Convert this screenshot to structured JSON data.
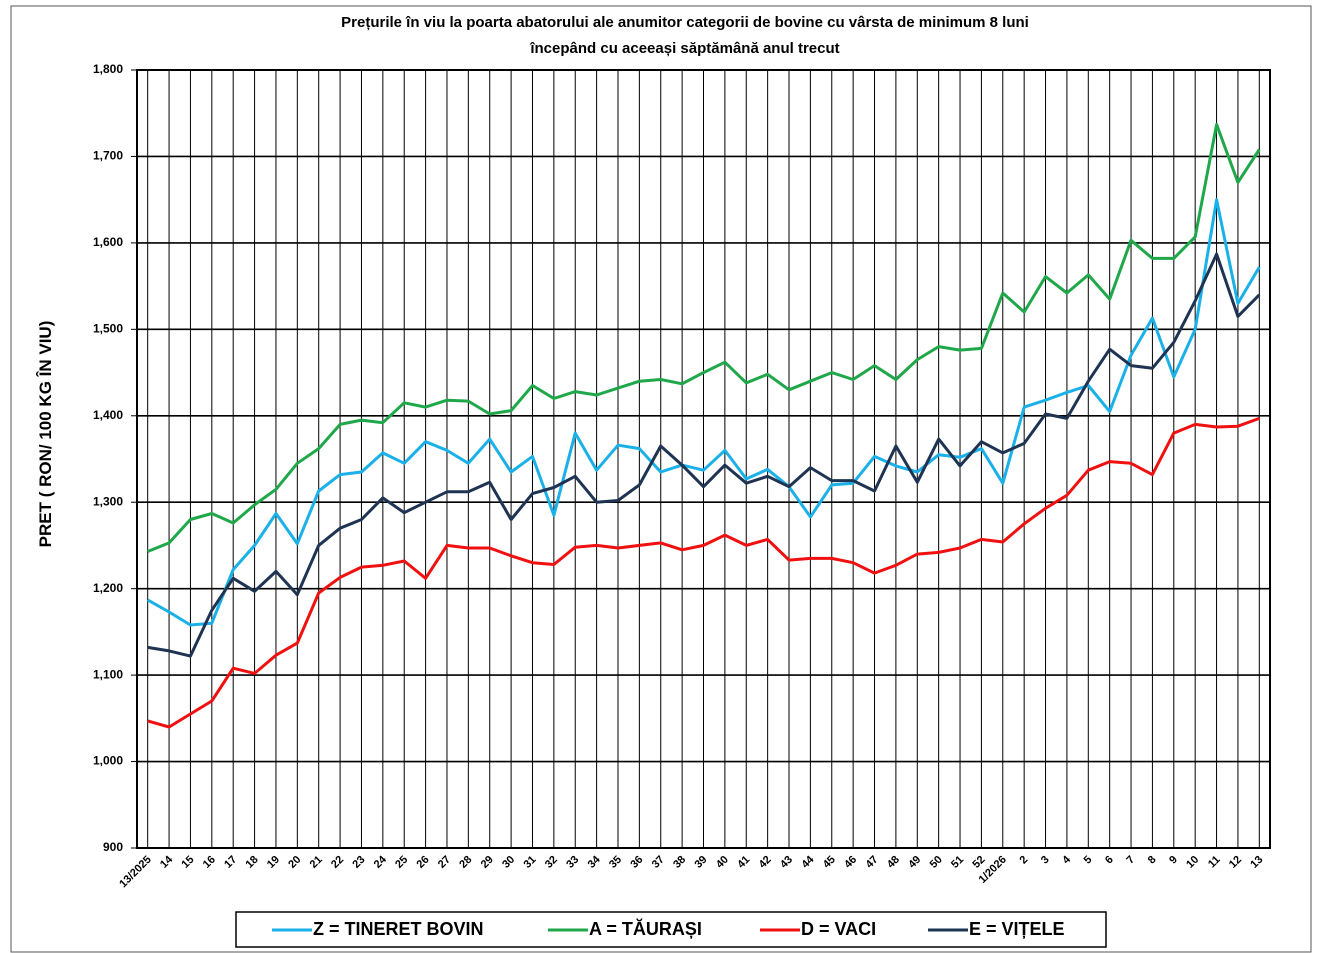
{
  "chart_data": {
    "type": "line",
    "title": "Prețurile în viu  la poarta abatorului ale anumitor categorii de  bovine  cu vârsta de minimum 8 luni",
    "subtitle": "începând  cu  aceeași săptămână anul trecut",
    "y_label": "PRET  ( RON/ 100 KG ÎN VIU)",
    "categories": [
      "13/2025",
      "14",
      "15",
      "16",
      "17",
      "18",
      "19",
      "20",
      "21",
      "22",
      "23",
      "24",
      "25",
      "26",
      "27",
      "28",
      "29",
      "30",
      "31",
      "32",
      "33",
      "34",
      "35",
      "36",
      "37",
      "38",
      "39",
      "40",
      "41",
      "42",
      "43",
      "44",
      "45",
      "46",
      "47",
      "48",
      "49",
      "50",
      "51",
      "52",
      "1/2026",
      "2",
      "3",
      "4",
      "5",
      "6",
      "7",
      "8",
      "9",
      "10",
      "11",
      "12",
      "13"
    ],
    "ylim": [
      900,
      1800
    ],
    "yticks": [
      {
        "value": 900,
        "label": "900"
      },
      {
        "value": 1000,
        "label": "1,000"
      },
      {
        "value": 1100,
        "label": "1,100"
      },
      {
        "value": 1200,
        "label": "1,200"
      },
      {
        "value": 1300,
        "label": "1,300"
      },
      {
        "value": 1400,
        "label": "1,400"
      },
      {
        "value": 1500,
        "label": "1,500"
      },
      {
        "value": 1600,
        "label": "1,600"
      },
      {
        "value": 1700,
        "label": "1,700"
      },
      {
        "value": 1800,
        "label": "1,800"
      }
    ],
    "grid": true,
    "legend": "bottom",
    "series": [
      {
        "name": "Z  = TINERET BOVIN",
        "color": "#1ab0e8",
        "values": [
          1187,
          1173,
          1158,
          1160,
          1222,
          1250,
          1287,
          1252,
          1313,
          1332,
          1335,
          1357,
          1345,
          1370,
          1360,
          1345,
          1373,
          1335,
          1353,
          1285,
          1380,
          1337,
          1366,
          1362,
          1335,
          1343,
          1337,
          1360,
          1327,
          1338,
          1318,
          1283,
          1320,
          1322,
          1353,
          1342,
          1335,
          1355,
          1352,
          1362,
          1322,
          1410,
          1418,
          1427,
          1435,
          1405,
          1470,
          1513,
          1445,
          1500,
          1650,
          1530,
          1572
        ]
      },
      {
        "name": "A = TĂURAȘI",
        "color": "#1fa84a",
        "values": [
          1243,
          1253,
          1280,
          1287,
          1276,
          1297,
          1315,
          1345,
          1362,
          1390,
          1395,
          1392,
          1415,
          1410,
          1418,
          1417,
          1402,
          1406,
          1435,
          1420,
          1428,
          1424,
          1432,
          1440,
          1442,
          1437,
          1450,
          1462,
          1438,
          1448,
          1430,
          1440,
          1450,
          1442,
          1458,
          1442,
          1465,
          1480,
          1476,
          1478,
          1542,
          1520,
          1561,
          1542,
          1563,
          1535,
          1603,
          1582,
          1582,
          1607,
          1737,
          1670,
          1708
        ]
      },
      {
        "name": "D = VACI",
        "color": "#f01010",
        "values": [
          1047,
          1040,
          1055,
          1070,
          1108,
          1102,
          1123,
          1137,
          1195,
          1213,
          1225,
          1227,
          1232,
          1212,
          1250,
          1247,
          1247,
          1238,
          1230,
          1228,
          1248,
          1250,
          1247,
          1250,
          1253,
          1245,
          1250,
          1262,
          1250,
          1257,
          1233,
          1235,
          1235,
          1230,
          1218,
          1227,
          1240,
          1242,
          1247,
          1257,
          1254,
          1275,
          1293,
          1308,
          1337,
          1347,
          1345,
          1332,
          1380,
          1390,
          1387,
          1388,
          1397
        ]
      },
      {
        "name": "E = VIȚELE",
        "color": "#1f3453",
        "values": [
          1132,
          1128,
          1122,
          1175,
          1212,
          1197,
          1220,
          1193,
          1250,
          1270,
          1280,
          1305,
          1288,
          1300,
          1312,
          1312,
          1323,
          1280,
          1310,
          1317,
          1330,
          1300,
          1302,
          1320,
          1365,
          1343,
          1318,
          1343,
          1322,
          1330,
          1318,
          1340,
          1325,
          1325,
          1313,
          1365,
          1323,
          1373,
          1342,
          1370,
          1357,
          1368,
          1402,
          1397,
          1440,
          1477,
          1458,
          1455,
          1485,
          1533,
          1587,
          1515,
          1540
        ]
      }
    ]
  }
}
